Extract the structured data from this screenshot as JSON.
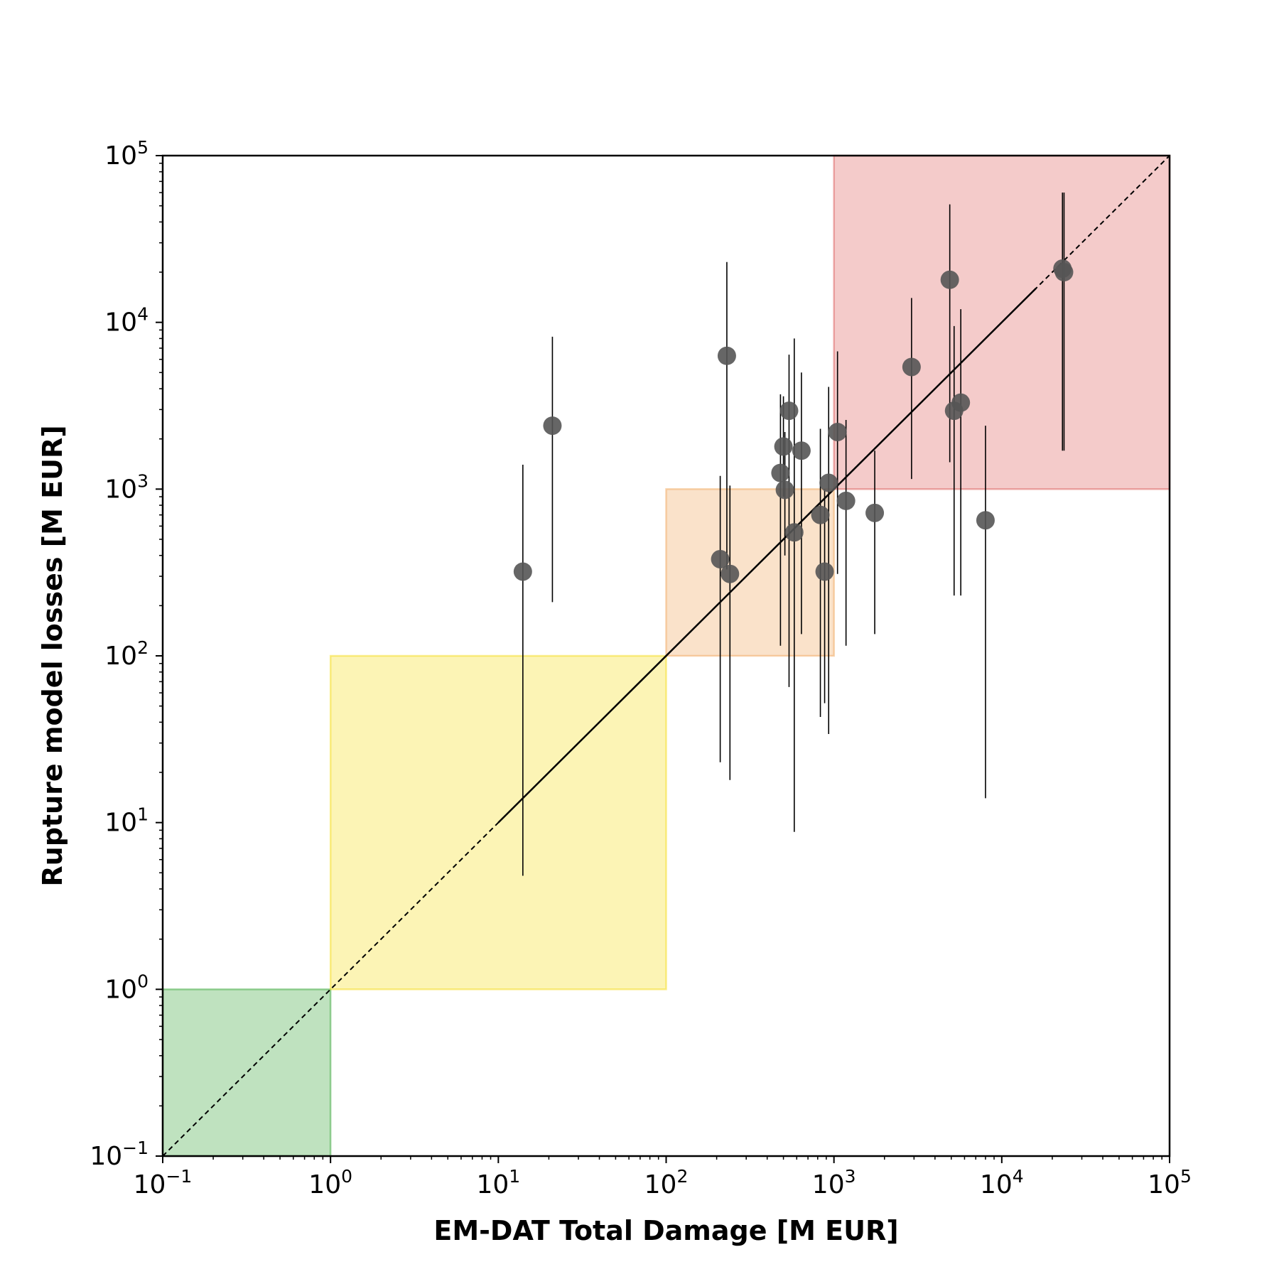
{
  "chart_data": {
    "type": "scatter",
    "title": "",
    "xlabel": "EM-DAT Total Damage [M EUR]",
    "ylabel": "Rupture model losses [M EUR]",
    "xscale": "log",
    "yscale": "log",
    "xlim": [
      0.1,
      100000
    ],
    "ylim": [
      0.1,
      100000
    ],
    "grid": false,
    "legend": "none",
    "tick_exponents": [
      -1,
      0,
      1,
      2,
      3,
      4,
      5
    ],
    "tick_base": "10",
    "colors": {
      "points": "#555555",
      "error_bars": "#000000",
      "band_green": "#2ca02c",
      "band_yellow": "#f5d90a",
      "band_orange": "#f0a050",
      "band_red": "#d9534f"
    },
    "bands": [
      {
        "name": "green",
        "x": [
          0.1,
          1
        ],
        "y": [
          0.1,
          1
        ],
        "color": "#2ca02c"
      },
      {
        "name": "yellow",
        "x": [
          1,
          100
        ],
        "y": [
          1,
          100
        ],
        "color": "#f5d90a"
      },
      {
        "name": "orange",
        "x": [
          100,
          1000
        ],
        "y": [
          100,
          1000
        ],
        "color": "#f0a050"
      },
      {
        "name": "red",
        "x": [
          1000,
          100000
        ],
        "y": [
          1000,
          100000
        ],
        "color": "#d9534f"
      }
    ],
    "identity_line": {
      "x": [
        0.1,
        100000
      ],
      "y": [
        0.1,
        100000
      ],
      "style": "dashed"
    },
    "fit_line": {
      "x": [
        10,
        16000
      ],
      "y": [
        10,
        16000
      ],
      "style": "solid"
    },
    "points": [
      {
        "x": 14,
        "y": 320,
        "ylo": 4.8,
        "yhi": 1400
      },
      {
        "x": 21,
        "y": 2400,
        "ylo": 210,
        "yhi": 8200
      },
      {
        "x": 210,
        "y": 380,
        "ylo": 23,
        "yhi": 1200
      },
      {
        "x": 230,
        "y": 6300,
        "ylo": 330,
        "yhi": 23000
      },
      {
        "x": 240,
        "y": 310,
        "ylo": 18,
        "yhi": 1050
      },
      {
        "x": 480,
        "y": 1250,
        "ylo": 115,
        "yhi": 3700
      },
      {
        "x": 500,
        "y": 1800,
        "ylo": 900,
        "yhi": 3600
      },
      {
        "x": 510,
        "y": 990,
        "ylo": 400,
        "yhi": 2200
      },
      {
        "x": 540,
        "y": 2950,
        "ylo": 65,
        "yhi": 6400
      },
      {
        "x": 580,
        "y": 550,
        "ylo": 8.8,
        "yhi": 8000
      },
      {
        "x": 640,
        "y": 1700,
        "ylo": 135,
        "yhi": 5000
      },
      {
        "x": 830,
        "y": 700,
        "ylo": 43,
        "yhi": 2300
      },
      {
        "x": 880,
        "y": 320,
        "ylo": 52,
        "yhi": 1000
      },
      {
        "x": 930,
        "y": 1090,
        "ylo": 34,
        "yhi": 4100
      },
      {
        "x": 1050,
        "y": 2200,
        "ylo": 310,
        "yhi": 6700
      },
      {
        "x": 1180,
        "y": 850,
        "ylo": 115,
        "yhi": 2600
      },
      {
        "x": 1750,
        "y": 720,
        "ylo": 135,
        "yhi": 1700
      },
      {
        "x": 2900,
        "y": 5400,
        "ylo": 1150,
        "yhi": 14000
      },
      {
        "x": 4900,
        "y": 18000,
        "ylo": 1450,
        "yhi": 51000
      },
      {
        "x": 5200,
        "y": 2950,
        "ylo": 230,
        "yhi": 9500
      },
      {
        "x": 5700,
        "y": 3300,
        "ylo": 230,
        "yhi": 12000
      },
      {
        "x": 8000,
        "y": 650,
        "ylo": 14,
        "yhi": 2400
      },
      {
        "x": 23000,
        "y": 21000,
        "ylo": 1700,
        "yhi": 60000
      },
      {
        "x": 23500,
        "y": 20000,
        "ylo": 1700,
        "yhi": 60000
      }
    ]
  }
}
